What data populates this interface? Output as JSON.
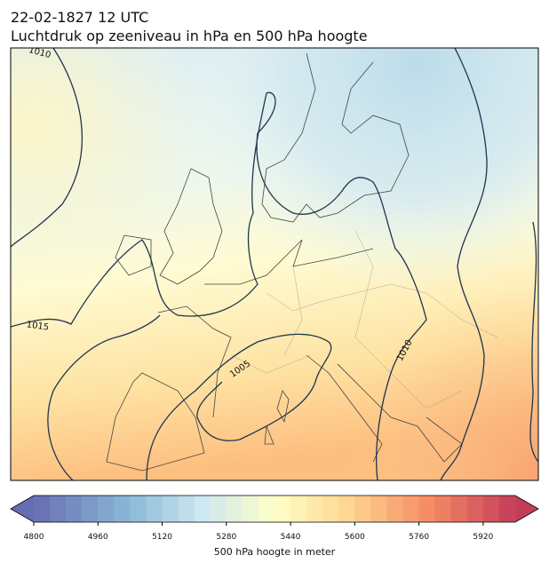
{
  "header": {
    "date": "22-02-1827 12 UTC",
    "title": "Luchtdruk op zeeniveau in hPa en 500 hPa hoogte"
  },
  "map": {
    "contour_labels": [
      {
        "text": "1010"
      },
      {
        "text": "1015"
      },
      {
        "text": "1005"
      },
      {
        "text": "1010"
      }
    ]
  },
  "colorbar": {
    "label": "500 hPa hoogte in meter",
    "lim": [
      4800,
      6000
    ],
    "step": 40,
    "ticks": [
      4800,
      4960,
      5120,
      5280,
      5440,
      5600,
      5760,
      5920
    ]
  }
}
